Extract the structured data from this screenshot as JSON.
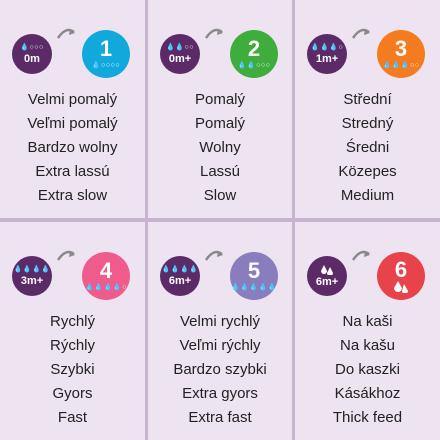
{
  "cards": [
    {
      "badge": {
        "drops": "💧○○○",
        "age": "0m"
      },
      "speed": {
        "number": "1",
        "drops": "💧○○○○",
        "color": "#11a9dc"
      },
      "labels": [
        "Velmi pomalý",
        "Veľmi pomalý",
        "Bardzo wolny",
        "Extra lassú",
        "Extra slow"
      ]
    },
    {
      "badge": {
        "drops": "💧💧○○",
        "age": "0m+"
      },
      "speed": {
        "number": "2",
        "drops": "💧💧○○○",
        "color": "#3fad3c"
      },
      "labels": [
        "Pomalý",
        "Pomalý",
        "Wolny",
        "Lassú",
        "Slow"
      ]
    },
    {
      "badge": {
        "drops": "💧💧💧○",
        "age": "1m+"
      },
      "speed": {
        "number": "3",
        "drops": "💧💧💧○○",
        "color": "#f47b20"
      },
      "labels": [
        "Střední",
        "Stredný",
        "Średni",
        "Közepes",
        "Medium"
      ]
    },
    {
      "badge": {
        "drops": "💧💧💧💧",
        "age": "3m+"
      },
      "speed": {
        "number": "4",
        "drops": "💧💧💧💧○",
        "color": "#ef5b8c"
      },
      "labels": [
        "Rychlý",
        "Rýchly",
        "Szybki",
        "Gyors",
        "Fast"
      ]
    },
    {
      "badge": {
        "drops": "💧💧💧💧",
        "age": "6m+"
      },
      "speed": {
        "number": "5",
        "drops": "💧💧💧💧💧",
        "color": "#8a7dbd"
      },
      "labels": [
        "Velmi rychlý",
        "Veľmi rýchly",
        "Bardzo szybki",
        "Extra gyors",
        "Extra fast"
      ]
    },
    {
      "badge": {
        "drops": "",
        "age": "6m+"
      },
      "speed": {
        "number": "6",
        "drops": "",
        "color": "#e8424a"
      },
      "labels": [
        "Na kaši",
        "Na kašu",
        "Do kaszki",
        "Kásákhoz",
        "Thick feed"
      ]
    }
  ],
  "colors": {
    "background": "#c7b2cf",
    "card": "#eee3f0",
    "badge": "#5b2a67",
    "arrow": "#8a8a8a"
  }
}
